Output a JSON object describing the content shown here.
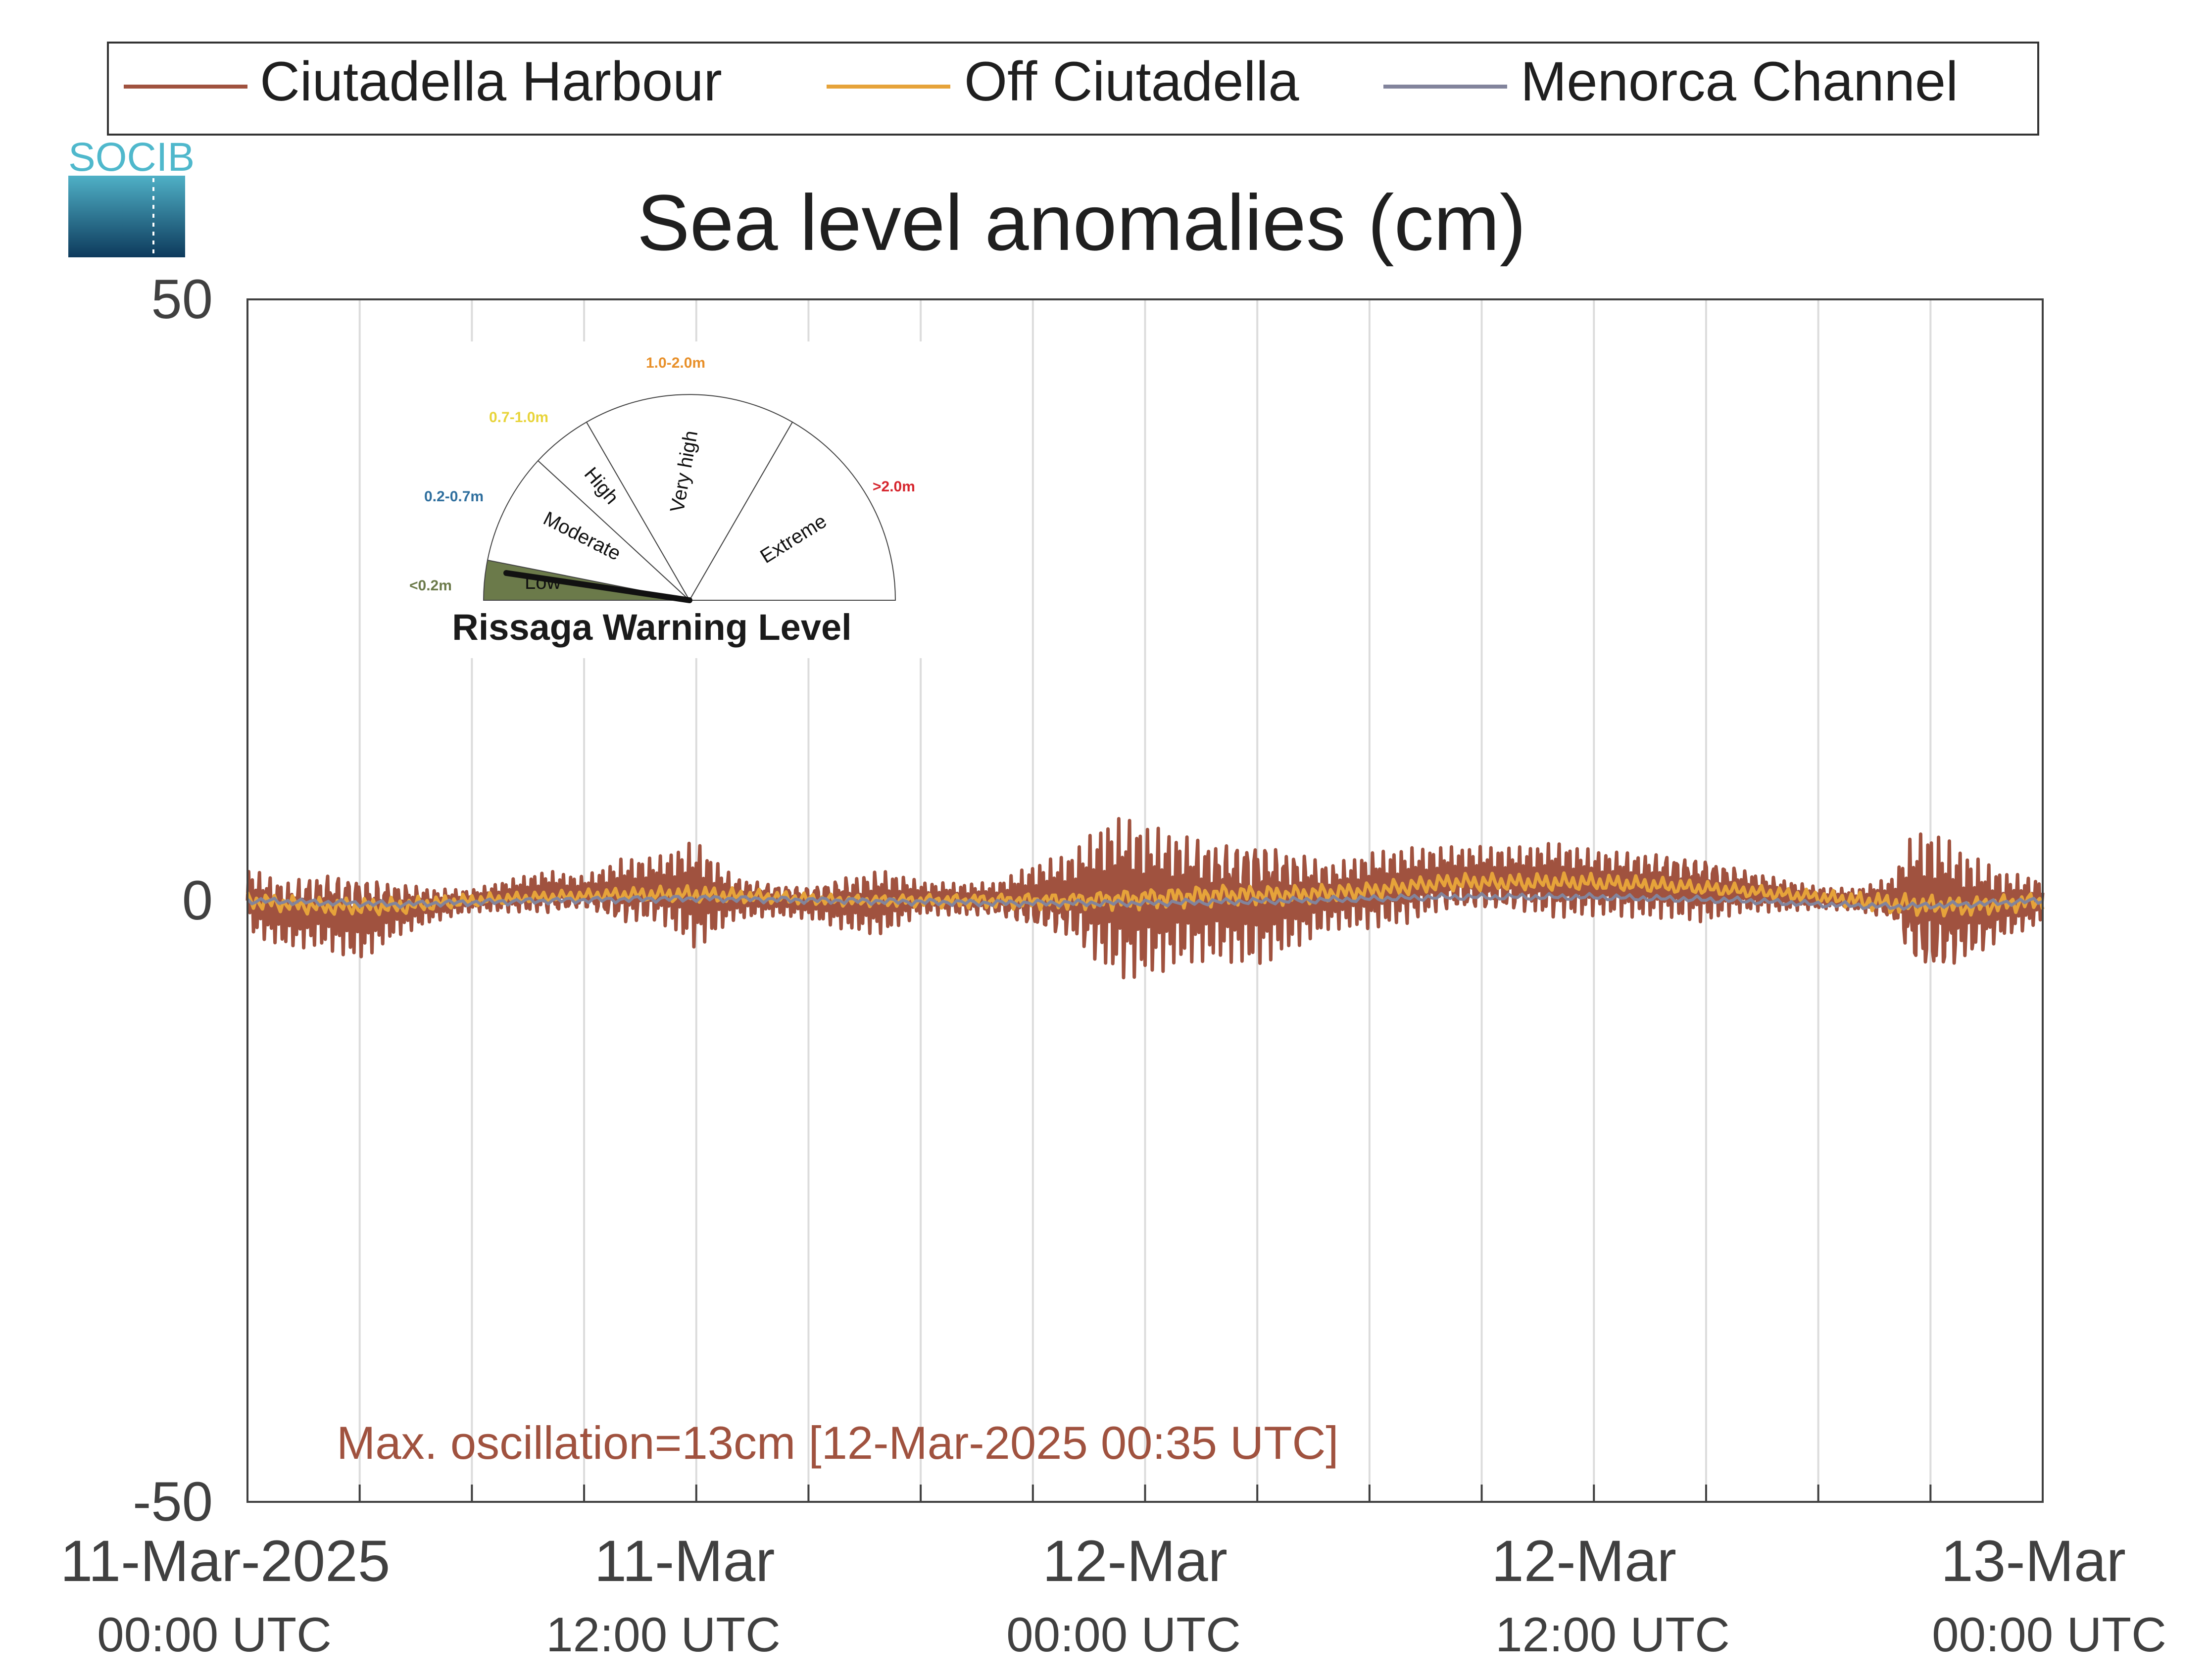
{
  "logo": {
    "text": "SOCIB"
  },
  "chart_data": {
    "type": "line",
    "title": "Sea level anomalies (cm)",
    "xlabel": "",
    "ylabel": "",
    "ylim": [
      -50,
      50
    ],
    "yticks": [
      "50",
      "0",
      "-50"
    ],
    "x_start": "11-Mar-2025 00:00 UTC",
    "x_end": "13-Mar-2025 00:00 UTC",
    "xticks": [
      {
        "line1": "11-Mar-2025",
        "line2": "00:00 UTC",
        "hour": 0
      },
      {
        "line1": "11-Mar",
        "line2": "12:00 UTC",
        "hour": 12
      },
      {
        "line1": "12-Mar",
        "line2": "00:00 UTC",
        "hour": 24
      },
      {
        "line1": "12-Mar",
        "line2": "12:00 UTC",
        "hour": 36
      },
      {
        "line1": "13-Mar",
        "line2": "00:00 UTC",
        "hour": 48
      }
    ],
    "grid": true,
    "legend_position": "top",
    "annotation": "Max. oscillation=13cm [12-Mar-2025 00:35 UTC]",
    "series": [
      {
        "name": "Ciutadella Harbour",
        "color": "#a0523f",
        "hours": [
          0,
          1,
          2,
          3,
          4,
          5,
          6,
          7,
          8,
          9,
          10,
          11,
          12,
          13,
          14,
          15,
          16,
          17,
          18,
          19,
          20,
          21,
          22,
          23,
          23.5,
          24,
          25,
          26,
          27,
          28,
          29,
          30,
          31,
          32,
          33,
          34,
          35,
          36,
          37,
          38,
          39,
          40,
          41,
          42,
          43,
          44,
          44.5,
          45,
          46,
          47,
          48
        ],
        "center": [
          0,
          -1,
          -0.5,
          -1,
          -0.5,
          -0.3,
          0,
          0.3,
          0.5,
          0.5,
          0.5,
          0.8,
          0.5,
          0.3,
          0.2,
          0,
          0,
          0,
          0.2,
          0,
          0,
          0,
          0,
          0,
          0,
          0,
          0.5,
          0.5,
          0.5,
          0.5,
          0.5,
          0.8,
          1,
          1.5,
          1.5,
          1.5,
          1.5,
          1.5,
          1.5,
          1.5,
          1.2,
          1,
          0.5,
          0.2,
          0,
          0,
          -0.5,
          -1,
          -1,
          -0.5,
          0
        ],
        "amplitude": [
          3,
          3,
          3.5,
          4,
          2.5,
          1.5,
          1,
          1.5,
          2,
          1.5,
          3,
          3,
          5,
          2,
          1.5,
          1.5,
          2.5,
          3,
          1.5,
          1.5,
          1.5,
          3,
          4,
          7,
          7.5,
          7,
          6,
          5.5,
          6,
          4.5,
          3,
          3.5,
          3.5,
          3,
          3,
          3,
          3.5,
          3,
          3,
          3,
          3,
          2,
          1.5,
          1,
          1,
          2,
          6,
          7,
          5,
          3,
          2
        ]
      },
      {
        "name": "Off Ciutadella",
        "color": "#e6a33a",
        "hours": [
          0,
          2,
          4,
          6,
          8,
          10,
          12,
          14,
          16,
          18,
          20,
          22,
          24,
          26,
          28,
          30,
          32,
          34,
          36,
          38,
          40,
          42,
          44,
          46,
          48
        ],
        "center": [
          0,
          -0.5,
          -0.5,
          0,
          0.3,
          0.5,
          0.5,
          0.3,
          0,
          0,
          0,
          0,
          0.2,
          0.5,
          0.5,
          0.8,
          1.5,
          1.5,
          1.5,
          1.2,
          0.8,
          0.3,
          -0.3,
          -0.5,
          0
        ],
        "amplitude": [
          0.8,
          0.8,
          0.8,
          0.6,
          0.5,
          0.6,
          0.8,
          0.6,
          0.5,
          0.6,
          0.7,
          0.8,
          1,
          1,
          0.9,
          0.8,
          0.8,
          0.8,
          0.8,
          0.7,
          0.6,
          0.6,
          1,
          0.9,
          0.8
        ]
      },
      {
        "name": "Menorca Channel",
        "color": "#82849c",
        "hours": [
          0,
          4,
          8,
          12,
          16,
          20,
          24,
          28,
          32,
          36,
          40,
          42,
          44,
          46,
          48
        ],
        "center": [
          0,
          -0.3,
          0,
          0.2,
          0,
          -0.2,
          -0.2,
          0,
          0.3,
          0.3,
          0,
          -0.3,
          -0.5,
          -0.3,
          0
        ],
        "amplitude": [
          0.3,
          0.3,
          0.3,
          0.3,
          0.3,
          0.3,
          0.3,
          0.3,
          0.3,
          0.3,
          0.3,
          0.3,
          0.3,
          0.3,
          0.3
        ]
      }
    ]
  },
  "gauge": {
    "title": "Rissaga Warning Level",
    "current_level": "Low",
    "sectors": [
      {
        "label": "Low",
        "range": "<0.2m",
        "color": "#6b7a4a"
      },
      {
        "label": "Moderate",
        "range": "0.2-0.7m",
        "color": "#2f6f9e"
      },
      {
        "label": "High",
        "range": "0.7-1.0m",
        "color": "#e8d43a"
      },
      {
        "label": "Very high",
        "range": "1.0-2.0m",
        "color": "#e8902a"
      },
      {
        "label": "Extreme",
        "range": ">2.0m",
        "color": "#d6262e"
      }
    ]
  }
}
